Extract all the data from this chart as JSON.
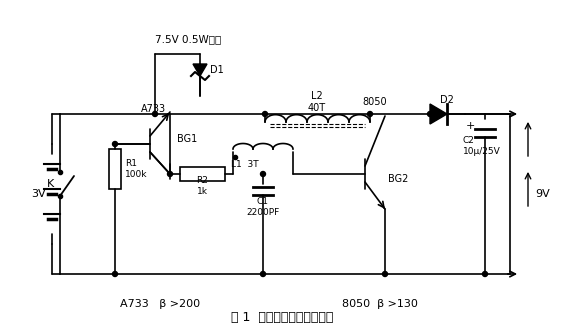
{
  "title": "图 1  电池升压稳压电路原理",
  "top_label": "7.5V 0.5W玻封",
  "label_A733_top": "A733",
  "label_BG1": "BG1",
  "label_R1": "R1\n100k",
  "label_R2": "R2\n1k",
  "label_C1": "C1\n2200PF",
  "label_L1": "L1  3T",
  "label_L2": "L2\n40T",
  "label_BG2": "BG2",
  "label_8050": "8050",
  "label_D1": "D1",
  "label_D2": "D2",
  "label_C2": "C2\n10μ/25V",
  "label_K": "K",
  "label_3V": "3V",
  "label_9V": "9V",
  "label_bot_left": "A733   β >200",
  "label_bot_right": "8050  β >130",
  "bg_color": "#ffffff",
  "line_color": "#000000"
}
